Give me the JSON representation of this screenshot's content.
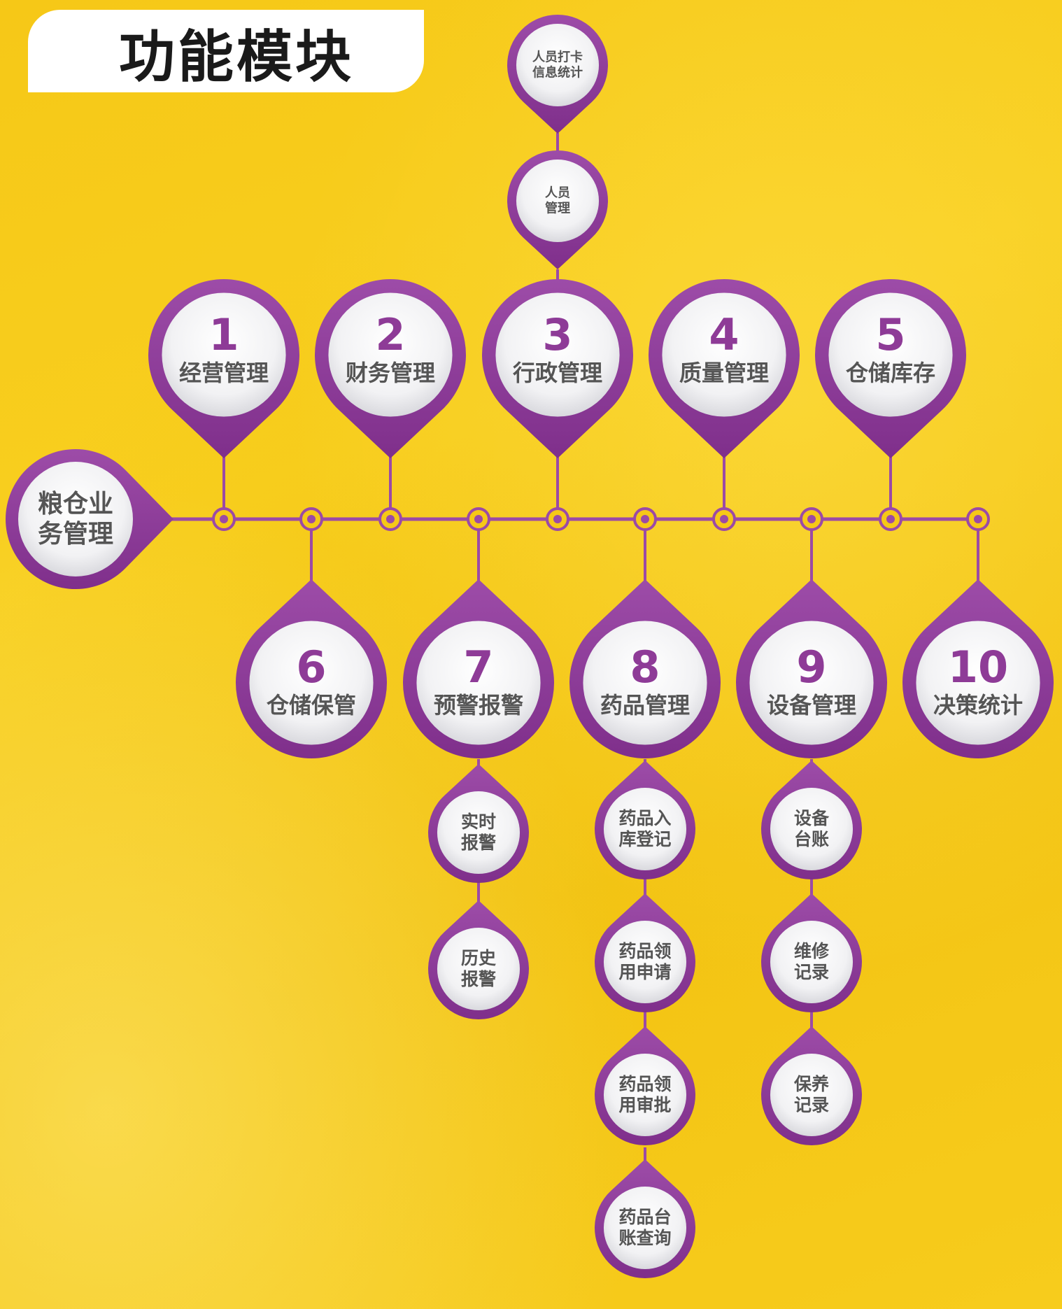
{
  "title": "功能模块",
  "colors": {
    "purple": "#8e3b97",
    "line": "#9b4aa6",
    "text": "#555555",
    "background": "#f6c817"
  },
  "root": {
    "line1": "粮仓业",
    "line2": "务管理"
  },
  "top_modules": [
    {
      "num": "1",
      "label": "经营管理"
    },
    {
      "num": "2",
      "label": "财务管理"
    },
    {
      "num": "3",
      "label": "行政管理"
    },
    {
      "num": "4",
      "label": "质量管理"
    },
    {
      "num": "5",
      "label": "仓储库存"
    }
  ],
  "bottom_modules": [
    {
      "num": "6",
      "label": "仓储保管"
    },
    {
      "num": "7",
      "label": "预警报警"
    },
    {
      "num": "8",
      "label": "药品管理"
    },
    {
      "num": "9",
      "label": "设备管理"
    },
    {
      "num": "10",
      "label": "决策统计"
    }
  ],
  "admin_children": [
    {
      "line1": "人员",
      "line2": "管理"
    },
    {
      "line1": "人员打卡",
      "line2": "信息统计"
    }
  ],
  "alarm_children": [
    {
      "line1": "实时",
      "line2": "报警"
    },
    {
      "line1": "历史",
      "line2": "报警"
    }
  ],
  "drug_children": [
    {
      "line1": "药品入",
      "line2": "库登记"
    },
    {
      "line1": "药品领",
      "line2": "用申请"
    },
    {
      "line1": "药品领",
      "line2": "用审批"
    },
    {
      "line1": "药品台",
      "line2": "账查询"
    }
  ],
  "equipment_children": [
    {
      "line1": "设备",
      "line2": "台账"
    },
    {
      "line1": "维修",
      "line2": "记录"
    },
    {
      "line1": "保养",
      "line2": "记录"
    }
  ]
}
